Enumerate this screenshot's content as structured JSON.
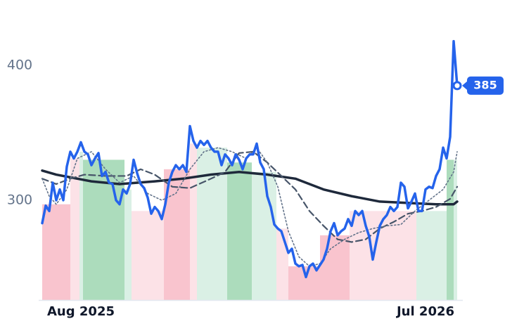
{
  "chart_data": {
    "type": "line",
    "xlim": [
      0,
      118
    ],
    "ylim": [
      226,
      448
    ],
    "yticks": [
      300,
      400
    ],
    "xticks": [
      {
        "value": 11,
        "label": "Aug 2025"
      },
      {
        "value": 109,
        "label": "Jul 2026"
      }
    ],
    "bands": [
      {
        "x0": 0,
        "x1": 8,
        "value": 297,
        "color": "#f8bac5"
      },
      {
        "x0": 8,
        "x1": 10.6,
        "value": 331,
        "color": "#fcdde3"
      },
      {
        "x0": 10.6,
        "x1": 11.6,
        "value": 336,
        "color": "#d4ede0"
      },
      {
        "x0": 11.6,
        "x1": 23.4,
        "value": 330,
        "color": "#9dd6b0"
      },
      {
        "x0": 23.4,
        "x1": 25.4,
        "value": 308,
        "color": "#d4ede0"
      },
      {
        "x0": 25.4,
        "x1": 34.6,
        "value": 292,
        "color": "#fcdde3"
      },
      {
        "x0": 34.6,
        "x1": 42,
        "value": 323,
        "color": "#f8bac5"
      },
      {
        "x0": 42,
        "x1": 44,
        "value": 342,
        "color": "#fcdde3"
      },
      {
        "x0": 44,
        "x1": 52.6,
        "value": 339,
        "color": "#d4ede0"
      },
      {
        "x0": 52.6,
        "x1": 59.6,
        "value": 328,
        "color": "#9dd6b0"
      },
      {
        "x0": 59.6,
        "x1": 66.6,
        "value": 321,
        "color": "#d4ede0"
      },
      {
        "x0": 66.6,
        "x1": 70,
        "value": 279,
        "color": "#fcdde3"
      },
      {
        "x0": 70,
        "x1": 79,
        "value": 251,
        "color": "#f8bac5"
      },
      {
        "x0": 79,
        "x1": 87.4,
        "value": 274,
        "color": "#f8bac5"
      },
      {
        "x0": 87.4,
        "x1": 106.4,
        "value": 292,
        "color": "#fcdde3"
      },
      {
        "x0": 106.4,
        "x1": 115,
        "value": 292,
        "color": "#d4ede0"
      },
      {
        "x0": 115,
        "x1": 117,
        "value": 330,
        "color": "#9dd6b0"
      },
      {
        "x0": 117,
        "x1": 118,
        "value": 330,
        "color": "#d4ede0"
      }
    ],
    "series": [
      {
        "color": "#1e293b",
        "width": 3.5,
        "dash": "solid",
        "x": [
          0,
          4,
          8,
          14,
          22,
          32,
          40,
          48,
          56,
          64,
          72,
          80,
          88,
          96,
          104,
          112,
          117,
          118
        ],
        "values": [
          322,
          319,
          317,
          314,
          312,
          314,
          316,
          319,
          321,
          319,
          316,
          308,
          303,
          299,
          298,
          297,
          297,
          299
        ]
      },
      {
        "color": "#475569",
        "width": 2.2,
        "dash": "dashed",
        "x": [
          0,
          4,
          8,
          12,
          18,
          24,
          28,
          32,
          37,
          42,
          48,
          52,
          56,
          60,
          64,
          68,
          72,
          76,
          80,
          84,
          88,
          92,
          96,
          100,
          104,
          108,
          112,
          116,
          118
        ],
        "values": [
          316,
          312,
          316,
          319,
          318,
          318,
          323,
          319,
          310,
          309,
          316,
          321,
          335,
          336,
          328,
          318,
          308,
          292,
          281,
          271,
          269,
          271,
          279,
          284,
          290,
          292,
          295,
          301,
          310
        ]
      },
      {
        "color": "#64748b",
        "width": 1.6,
        "dash": "dotted",
        "x": [
          0,
          2,
          4,
          7,
          10,
          14,
          18,
          22,
          26,
          30,
          34,
          38,
          42,
          46,
          50,
          54,
          58,
          61,
          64,
          67,
          70,
          73,
          76,
          79,
          82,
          86,
          90,
          94,
          98,
          102,
          106,
          110,
          114,
          117,
          118
        ],
        "values": [
          316,
          303,
          297,
          308,
          331,
          336,
          323,
          313,
          318,
          305,
          300,
          305,
          323,
          336,
          339,
          336,
          331,
          339,
          328,
          310,
          277,
          258,
          251,
          253,
          264,
          271,
          276,
          279,
          281,
          282,
          292,
          300,
          308,
          321,
          336
        ]
      },
      {
        "color": "#2563eb",
        "width": 3.5,
        "dash": "solid",
        "values": [
          283,
          296,
          292,
          313,
          300,
          308,
          300,
          325,
          336,
          331,
          336,
          343,
          336,
          334,
          326,
          331,
          335,
          318,
          321,
          313,
          312,
          300,
          297,
          308,
          305,
          312,
          330,
          320,
          312,
          309,
          302,
          290,
          295,
          292,
          286,
          297,
          313,
          321,
          326,
          323,
          326,
          321,
          355,
          344,
          339,
          344,
          341,
          344,
          339,
          336,
          336,
          326,
          334,
          331,
          326,
          334,
          330,
          323,
          331,
          334,
          334,
          342,
          328,
          323,
          303,
          295,
          282,
          279,
          277,
          269,
          261,
          264,
          253,
          251,
          252,
          243,
          251,
          253,
          248,
          252,
          256,
          264,
          277,
          283,
          274,
          277,
          279,
          286,
          281,
          292,
          289,
          292,
          281,
          273,
          256,
          269,
          281,
          286,
          289,
          295,
          292,
          295,
          313,
          310,
          294,
          299,
          305,
          292,
          292,
          308,
          310,
          309,
          318,
          323,
          339,
          331,
          347,
          418,
          385
        ]
      }
    ]
  }
}
